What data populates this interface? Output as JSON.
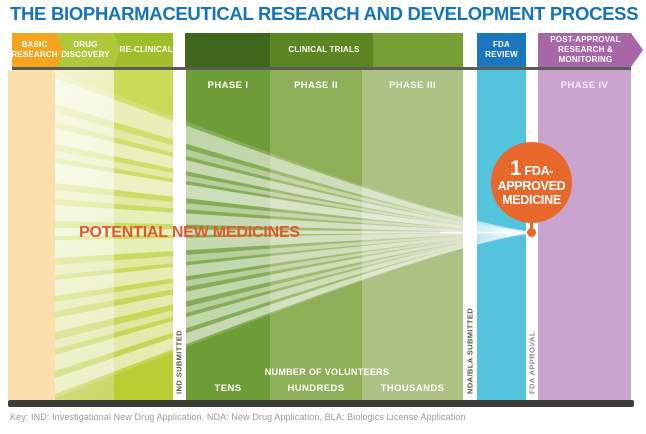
{
  "title": "THE BIOPHARMACEUTICAL RESEARCH AND DEVELOPMENT PROCESS",
  "pipeline": {
    "stages": [
      {
        "label": "BASIC RESEARCH",
        "color": "#F6A41E"
      },
      {
        "label": "DRUG DISCOVERY",
        "color": "#AEC83C"
      },
      {
        "label": "PRE-CLINICAL",
        "color": "#A0BE2A"
      },
      {
        "label": "CLINICAL TRIALS",
        "color": "#3E671C"
      },
      {
        "label": "FDA REVIEW",
        "color": "#1B76BE"
      },
      {
        "label": "POST-APPROVAL RESEARCH & MONITORING",
        "color": "#A666A7"
      }
    ],
    "phases": [
      {
        "label": "PHASE I",
        "color": "#6E9C36"
      },
      {
        "label": "PHASE II",
        "color": "#8FAE58"
      },
      {
        "label": "PHASE III",
        "color": "#ABC284"
      },
      {
        "label": "PHASE IV",
        "color": "#C9A4CF"
      }
    ],
    "funnel_label": "POTENTIAL NEW MEDICINES",
    "funnel_label_color": "#DE5A2C",
    "outcome": {
      "count": "1",
      "lines": [
        "FDA-",
        "APPROVED",
        "MEDICINE"
      ],
      "color": "#E8682C"
    },
    "milestones": [
      {
        "label": "IND SUBMITTED"
      },
      {
        "label": "NDA/BLA SUBMITTED"
      },
      {
        "label": "FDA APPROVAL"
      }
    ],
    "volunteers": {
      "heading": "NUMBER OF VOLUNTEERS",
      "values": [
        "TENS",
        "HUNDREDS",
        "THOUSANDS"
      ]
    }
  },
  "key_line": "Key: IND: Investigational New Drug Application, NDA: New Drug Application, BLA: Biologics License Application",
  "title_color": "#1473BC"
}
